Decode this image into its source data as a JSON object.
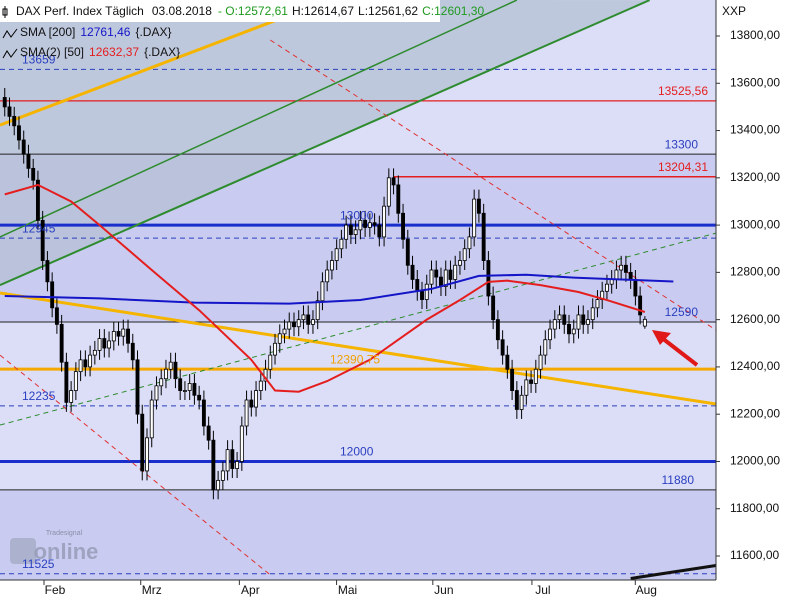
{
  "chart_data": {
    "type": "candlestick",
    "header": {
      "title": "DAX Perf. Index Täglich",
      "date": "03.08.2018",
      "open": "- O:12572,61",
      "high": "H:12614,67",
      "low": "L:12561,62",
      "close": "C:12601,30"
    },
    "axis_label": "XXP",
    "watermark": {
      "brand": "Tradesignal",
      "name": "online"
    },
    "up_color": "#ffffff",
    "down_color": "#000000",
    "open": [
      13540,
      13500,
      13460,
      13420,
      13360,
      13300,
      13240,
      13190,
      13020,
      12850,
      12760,
      12650,
      12580,
      12420,
      12250,
      12300,
      12380,
      12430,
      12400,
      12450,
      12470,
      12520,
      12480,
      12510,
      12550,
      12530,
      12560,
      12500,
      12430,
      12200,
      11960,
      12100,
      12260,
      12320,
      12350,
      12390,
      12420,
      12350,
      12300,
      12300,
      12330,
      12280,
      12260,
      12150,
      12090,
      11880,
      11920,
      11960,
      12050,
      11970,
      12000,
      12150,
      12260,
      12230,
      12300,
      12340,
      12390,
      12450,
      12500,
      12540,
      12560,
      12590,
      12570,
      12600,
      12620,
      12580,
      12600,
      12680,
      12760,
      12810,
      12850,
      12900,
      12940,
      13000,
      12960,
      12980,
      13020,
      12990,
      13010,
      13000,
      12950,
      13080,
      13200,
      13170,
      13050,
      12940,
      12830,
      12770,
      12720,
      12685,
      12750,
      12810,
      12780,
      12740,
      12810,
      12770,
      12830,
      12850,
      12900,
      12950,
      13110,
      13050,
      12850,
      12700,
      12600,
      12515,
      12450,
      12390,
      12300,
      12220,
      12280,
      12345,
      12330,
      12390,
      12450,
      12515,
      12560,
      12600,
      12620,
      12580,
      12540,
      12560,
      12620,
      12580,
      12600,
      12650,
      12685,
      12720,
      12750,
      12770,
      12810,
      12830,
      12800,
      12770,
      12700,
      12572.61
    ],
    "high": [
      13580,
      13540,
      13500,
      13460,
      13400,
      13340,
      13280,
      13230,
      13060,
      12890,
      12800,
      12690,
      12620,
      12460,
      12340,
      12420,
      12470,
      12470,
      12490,
      12510,
      12560,
      12560,
      12550,
      12590,
      12590,
      12600,
      12600,
      12540,
      12470,
      12240,
      12140,
      12300,
      12360,
      12390,
      12430,
      12460,
      12460,
      12390,
      12340,
      12370,
      12370,
      12320,
      12300,
      12190,
      12130,
      11960,
      12000,
      12090,
      12090,
      12040,
      12190,
      12300,
      12300,
      12340,
      12380,
      12430,
      12490,
      12540,
      12580,
      12600,
      12630,
      12630,
      12640,
      12660,
      12660,
      12640,
      12720,
      12800,
      12850,
      12890,
      12940,
      12980,
      13040,
      13040,
      13020,
      13060,
      13060,
      13050,
      13050,
      13040,
      13120,
      13240,
      13240,
      13210,
      13090,
      12980,
      12870,
      12810,
      12760,
      12790,
      12850,
      12850,
      12820,
      12850,
      12850,
      12870,
      12890,
      12940,
      12990,
      13150,
      13150,
      13090,
      12890,
      12740,
      12640,
      12555,
      12490,
      12430,
      12340,
      12320,
      12385,
      12385,
      12430,
      12490,
      12555,
      12600,
      12640,
      12660,
      12660,
      12620,
      12600,
      12660,
      12660,
      12640,
      12690,
      12725,
      12760,
      12790,
      12810,
      12850,
      12870,
      12870,
      12840,
      12810,
      12740,
      12614.67
    ],
    "low": [
      13460,
      13420,
      13380,
      13320,
      13260,
      13200,
      13150,
      12980,
      12810,
      12720,
      12610,
      12540,
      12380,
      12210,
      12210,
      12260,
      12340,
      12360,
      12360,
      12410,
      12430,
      12440,
      12440,
      12470,
      12490,
      12490,
      12460,
      12390,
      12160,
      11920,
      11920,
      12060,
      12220,
      12280,
      12310,
      12350,
      12310,
      12260,
      12260,
      12260,
      12240,
      12220,
      12110,
      12050,
      11840,
      11840,
      11880,
      11920,
      11930,
      11930,
      11960,
      12110,
      12190,
      12190,
      12260,
      12300,
      12350,
      12410,
      12460,
      12500,
      12520,
      12530,
      12530,
      12560,
      12540,
      12540,
      12560,
      12640,
      12720,
      12770,
      12810,
      12860,
      12900,
      12920,
      12920,
      12940,
      12950,
      12950,
      12960,
      12910,
      12910,
      13040,
      13130,
      13010,
      12900,
      12790,
      12730,
      12680,
      12645,
      12645,
      12710,
      12740,
      12700,
      12700,
      12730,
      12730,
      12790,
      12810,
      12860,
      12910,
      13010,
      12810,
      12660,
      12560,
      12475,
      12410,
      12350,
      12260,
      12180,
      12180,
      12240,
      12290,
      12290,
      12350,
      12410,
      12475,
      12520,
      12560,
      12540,
      12500,
      12500,
      12520,
      12540,
      12540,
      12560,
      12610,
      12645,
      12680,
      12710,
      12730,
      12770,
      12760,
      12730,
      12660,
      12580,
      12561.62
    ],
    "close": [
      13500,
      13460,
      13420,
      13360,
      13300,
      13240,
      13190,
      13020,
      12850,
      12760,
      12650,
      12580,
      12420,
      12250,
      12300,
      12380,
      12430,
      12400,
      12450,
      12470,
      12520,
      12480,
      12510,
      12550,
      12530,
      12560,
      12500,
      12430,
      12200,
      11960,
      12100,
      12260,
      12320,
      12350,
      12390,
      12420,
      12350,
      12300,
      12300,
      12330,
      12280,
      12260,
      12150,
      12090,
      11880,
      11920,
      11960,
      12050,
      11970,
      12000,
      12150,
      12260,
      12230,
      12300,
      12340,
      12390,
      12450,
      12500,
      12540,
      12560,
      12590,
      12570,
      12600,
      12620,
      12580,
      12600,
      12680,
      12760,
      12810,
      12850,
      12900,
      12940,
      13000,
      12960,
      12980,
      13020,
      12990,
      13010,
      13000,
      12950,
      13080,
      13200,
      13170,
      13050,
      12940,
      12830,
      12770,
      12720,
      12685,
      12750,
      12810,
      12780,
      12740,
      12810,
      12770,
      12830,
      12850,
      12900,
      12950,
      13110,
      13050,
      12850,
      12700,
      12600,
      12515,
      12450,
      12390,
      12300,
      12220,
      12280,
      12345,
      12330,
      12390,
      12450,
      12515,
      12560,
      12600,
      12620,
      12580,
      12540,
      12560,
      12620,
      12580,
      12600,
      12650,
      12685,
      12720,
      12750,
      12770,
      12810,
      12830,
      12800,
      12770,
      12700,
      12620,
      12601.3
    ],
    "series": [
      {
        "name": "SMA [200]",
        "value_label": "12761,46",
        "source": "{.DAX}",
        "color": "#1515c8",
        "x": [
          0,
          20,
          40,
          60,
          75,
          90,
          100,
          110,
          120,
          130,
          141
        ],
        "values": [
          12700,
          12690,
          12672,
          12668,
          12683,
          12730,
          12785,
          12790,
          12778,
          12770,
          12761.46
        ]
      },
      {
        "name": "SMA(2) [50]",
        "value_label": "12632,37",
        "source": "{.DAX}",
        "color": "#e41e1e",
        "x": [
          0,
          7,
          14,
          20,
          31,
          41,
          52,
          57,
          62,
          68,
          77,
          83,
          89,
          96,
          102,
          106,
          113,
          121,
          127,
          135
        ],
        "values": [
          13130,
          13170,
          13100,
          13000,
          12810,
          12640,
          12430,
          12300,
          12295,
          12340,
          12430,
          12515,
          12600,
          12683,
          12760,
          12765,
          12746,
          12717,
          12683,
          12632.37
        ]
      }
    ],
    "bands": [
      {
        "from": 12590,
        "to": 13300,
        "color": "#c9ccf0"
      },
      {
        "from": 11498.5,
        "to": 11880,
        "color": "#c9ccf0"
      }
    ],
    "levels": [
      {
        "value": 13659,
        "label": "13659",
        "color": "#2a3fbf",
        "label_color": "#2a3fbf",
        "width": 1,
        "dash": true
      },
      {
        "value": 13525.56,
        "label": "13525,56",
        "color": "#e41e1e",
        "label_color": "#e41e1e",
        "width": 1.3,
        "dash": false
      },
      {
        "value": 13300,
        "label": "13300",
        "color": "#222222",
        "label_color": "#2a3fbf",
        "width": 1,
        "dash": false
      },
      {
        "value": 13204.31,
        "label": "13204,31",
        "color": "#e41e1e",
        "label_color": "#e41e1e",
        "width": 1.5,
        "dash": false,
        "from": 82
      },
      {
        "value": 13000,
        "label": "13000",
        "color": "#1a2ecc",
        "label_color": "#2a3fbf",
        "width": 3,
        "dash": false
      },
      {
        "value": 12945,
        "label": "12945",
        "color": "#2a3fbf",
        "label_color": "#2a3fbf",
        "width": 1,
        "dash": true
      },
      {
        "value": 12590,
        "label": "12590",
        "color": "#222222",
        "label_color": "#2a3fbf",
        "width": 1,
        "dash": false
      },
      {
        "value": 12390.75,
        "label": "12390,75",
        "color": "#f5a800",
        "label_color": "#f0a000",
        "width": 3,
        "dash": false
      },
      {
        "value": 12235,
        "label": "12235",
        "color": "#2a3fbf",
        "label_color": "#2a3fbf",
        "width": 1,
        "dash": true
      },
      {
        "value": 12000,
        "label": "12000",
        "color": "#1a2ecc",
        "label_color": "#2a3fbf",
        "width": 3,
        "dash": false
      },
      {
        "value": 11880,
        "label": "11880",
        "color": "#222222",
        "label_color": "#2a3fbf",
        "width": 1,
        "dash": false
      },
      {
        "value": 11525,
        "label": "11525",
        "color": "#2a3fbf",
        "label_color": "#2a3fbf",
        "width": 1,
        "dash": true
      }
    ],
    "trendlines": [
      {
        "color": "#f5b400",
        "width": 3,
        "dash": false,
        "from": [
          -1,
          13423
        ],
        "to": [
          68.4,
          13952
        ]
      },
      {
        "color": "#f5b400",
        "width": 3,
        "dash": false,
        "from": [
          -1,
          12713
        ],
        "to": [
          150,
          12243
        ]
      },
      {
        "color": "#2e8b2e",
        "width": 2,
        "dash": false,
        "from": [
          -1,
          12746
        ],
        "to": [
          136,
          13952
        ]
      },
      {
        "color": "#2e8b2e",
        "width": 1.5,
        "dash": false,
        "from": [
          -1,
          12950
        ],
        "to": [
          108,
          13952
        ]
      },
      {
        "color": "#2e8b2e",
        "width": 1,
        "dash": true,
        "from": [
          -1,
          12154
        ],
        "to": [
          150,
          12966
        ]
      },
      {
        "color": "#e03030",
        "width": 1,
        "dash": true,
        "from": [
          56,
          13783
        ],
        "to": [
          150,
          12556
        ]
      },
      {
        "color": "#e03030",
        "width": 1,
        "dash": true,
        "from": [
          -1,
          12450
        ],
        "to": [
          56,
          11520
        ]
      },
      {
        "color": "#111111",
        "width": 3,
        "dash": false,
        "from": [
          132,
          11505
        ],
        "to": [
          150,
          11560
        ]
      }
    ],
    "xlim": [
      -1,
      150
    ],
    "xticks": [
      {
        "value": 10.6,
        "label": "Feb"
      },
      {
        "value": 31,
        "label": "Mrz"
      },
      {
        "value": 51.8,
        "label": "Apr"
      },
      {
        "value": 72.3,
        "label": "Mai"
      },
      {
        "value": 92.6,
        "label": "Jun"
      },
      {
        "value": 113.5,
        "label": "Jul"
      },
      {
        "value": 135.3,
        "label": "Aug"
      }
    ],
    "ylim": [
      11498.5,
      13952.3
    ],
    "yticks": [
      {
        "value": 11600,
        "label": "11600,00"
      },
      {
        "value": 11800,
        "label": "11800,00"
      },
      {
        "value": 12000,
        "label": "12000,00"
      },
      {
        "value": 12200,
        "label": "12200,00"
      },
      {
        "value": 12400,
        "label": "12400,00"
      },
      {
        "value": 12600,
        "label": "12600,00"
      },
      {
        "value": 12800,
        "label": "12800,00"
      },
      {
        "value": 13000,
        "label": "13000,00"
      },
      {
        "value": 13200,
        "label": "13200,00"
      },
      {
        "value": 13400,
        "label": "13400,00"
      },
      {
        "value": 13600,
        "label": "13600,00"
      },
      {
        "value": 13800,
        "label": "13800,00"
      }
    ],
    "grid": false
  }
}
